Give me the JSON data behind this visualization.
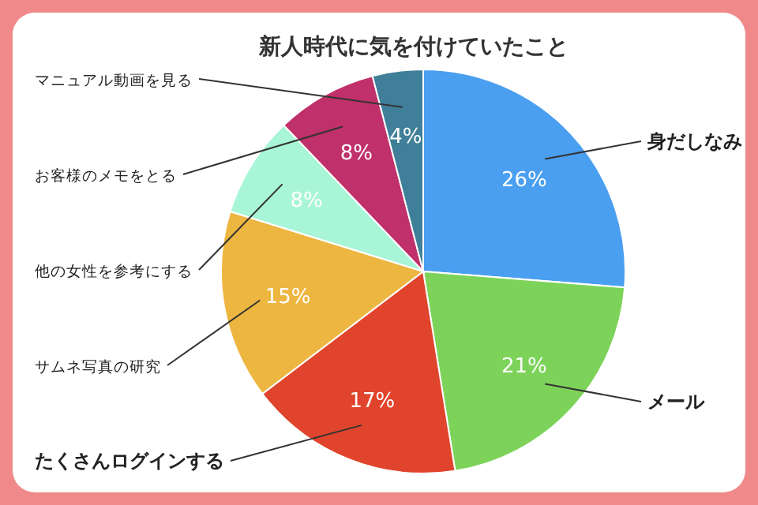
{
  "chart_data": {
    "type": "pie",
    "title": "新人時代に気を付けていたこと",
    "categories": [
      "身だしなみ",
      "メール",
      "たくさんログインする",
      "サムネ写真の研究",
      "他の女性を参考にする",
      "お客様のメモをとる",
      "マニュアル動画を見る"
    ],
    "values": [
      26,
      21,
      17,
      15,
      8,
      8,
      4
    ],
    "colors": [
      "#4a9ff0",
      "#7dd35a",
      "#e0442c",
      "#edb640",
      "#a8f5d8",
      "#c0306a",
      "#3f7f99"
    ],
    "value_labels": [
      "26%",
      "21%",
      "17%",
      "15%",
      "8%",
      "8%",
      "4%"
    ]
  }
}
